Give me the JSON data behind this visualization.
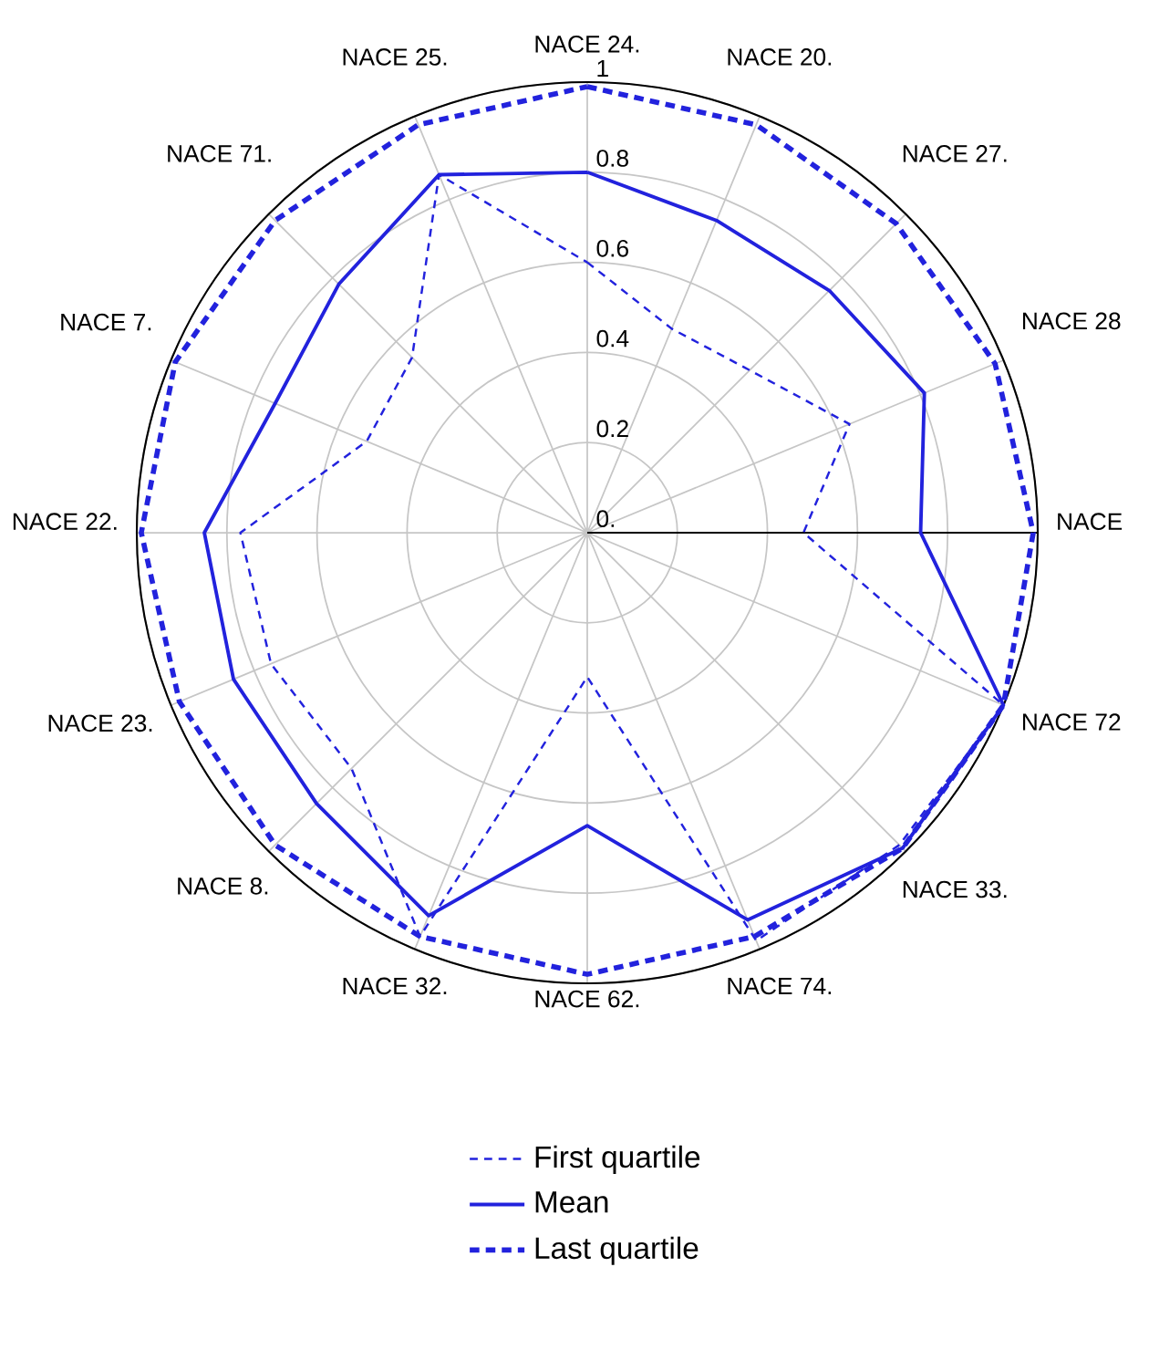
{
  "chart_data": {
    "type": "radar",
    "categories": [
      "NACE 24.",
      "NACE 20.",
      "NACE 27.",
      "NACE 28",
      "NACE",
      "NACE 72",
      "NACE 33.",
      "NACE 74.",
      "NACE 62.",
      "NACE 32.",
      "NACE 8.",
      "NACE 23.",
      "NACE 22.",
      "NACE 7.",
      "NACE 71.",
      "NACE 25."
    ],
    "ylim": [
      0,
      1
    ],
    "yticks": [
      {
        "value": 0,
        "label": "0."
      },
      0.2,
      0.4,
      0.6,
      0.8,
      1
    ],
    "grid": true,
    "legend": "bottom",
    "series": [
      {
        "name": "First quartile",
        "color": "#2222dd",
        "line_style": "dashed",
        "values": [
          0.6,
          0.49,
          0.51,
          0.63,
          0.48,
          1,
          0.98,
          0.98,
          0.32,
          0.97,
          0.74,
          0.76,
          0.77,
          0.53,
          0.55,
          0.86
        ]
      },
      {
        "name": "Mean",
        "color": "#2222dd",
        "line_style": "solid",
        "values": [
          0.8,
          0.75,
          0.76,
          0.81,
          0.74,
          1,
          0.99,
          0.93,
          0.65,
          0.92,
          0.85,
          0.85,
          0.85,
          0.75,
          0.78,
          0.86
        ]
      },
      {
        "name": "Last quartile",
        "color": "#2222dd",
        "line_style": "dashed",
        "values": [
          0.99,
          0.98,
          0.97,
          0.98,
          0.99,
          1,
          0.99,
          0.97,
          0.98,
          0.97,
          0.98,
          0.98,
          0.99,
          0.99,
          0.98,
          0.98
        ]
      }
    ]
  }
}
